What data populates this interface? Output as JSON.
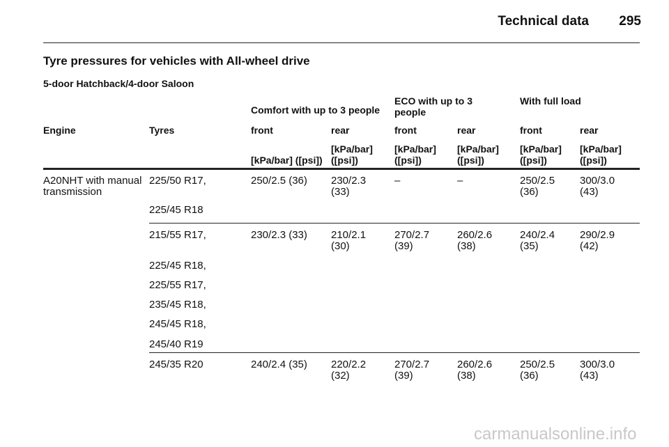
{
  "header": {
    "title": "Technical data",
    "page": "295"
  },
  "section": {
    "title": "Tyre pressures for vehicles with All-wheel drive",
    "subtitle": "5-door Hatchback/4-door Saloon"
  },
  "table": {
    "group_headers": [
      "Comfort with up to 3 people",
      "ECO with up to 3 people",
      "With full load"
    ],
    "columns": [
      "Engine",
      "Tyres",
      "front",
      "rear",
      "front",
      "rear",
      "front",
      "rear"
    ],
    "units": [
      "[kPa/bar] ([psi])",
      "[kPa/bar] ([psi])",
      "[kPa/bar] ([psi])",
      "[kPa/bar] ([psi])",
      "[kPa/bar] ([psi])",
      "[kPa/bar] ([psi])"
    ],
    "groups": [
      {
        "engine": "A20NHT with manual transmission",
        "tyres": [
          "225/50 R17,",
          "225/45 R18"
        ],
        "values": [
          "250/2.5 (36)",
          "230/2.3 (33)",
          "–",
          "–",
          "250/2.5 (36)",
          "300/3.0 (43)"
        ]
      },
      {
        "engine": null,
        "tyres": [
          "215/55 R17,",
          "225/45 R18,",
          "225/55 R17,",
          "235/45 R18,",
          "245/45 R18,",
          "245/40 R19"
        ],
        "values": [
          "230/2.3 (33)",
          "210/2.1 (30)",
          "270/2.7 (39)",
          "260/2.6 (38)",
          "240/2.4 (35)",
          "290/2.9 (42)"
        ]
      },
      {
        "engine": null,
        "tyres": [
          "245/35 R20"
        ],
        "values": [
          "240/2.4 (35)",
          "220/2.2 (32)",
          "270/2.7 (39)",
          "260/2.6 (38)",
          "250/2.5 (36)",
          "300/3.0 (43)"
        ]
      }
    ]
  },
  "watermark": "carmanualsonline.info"
}
